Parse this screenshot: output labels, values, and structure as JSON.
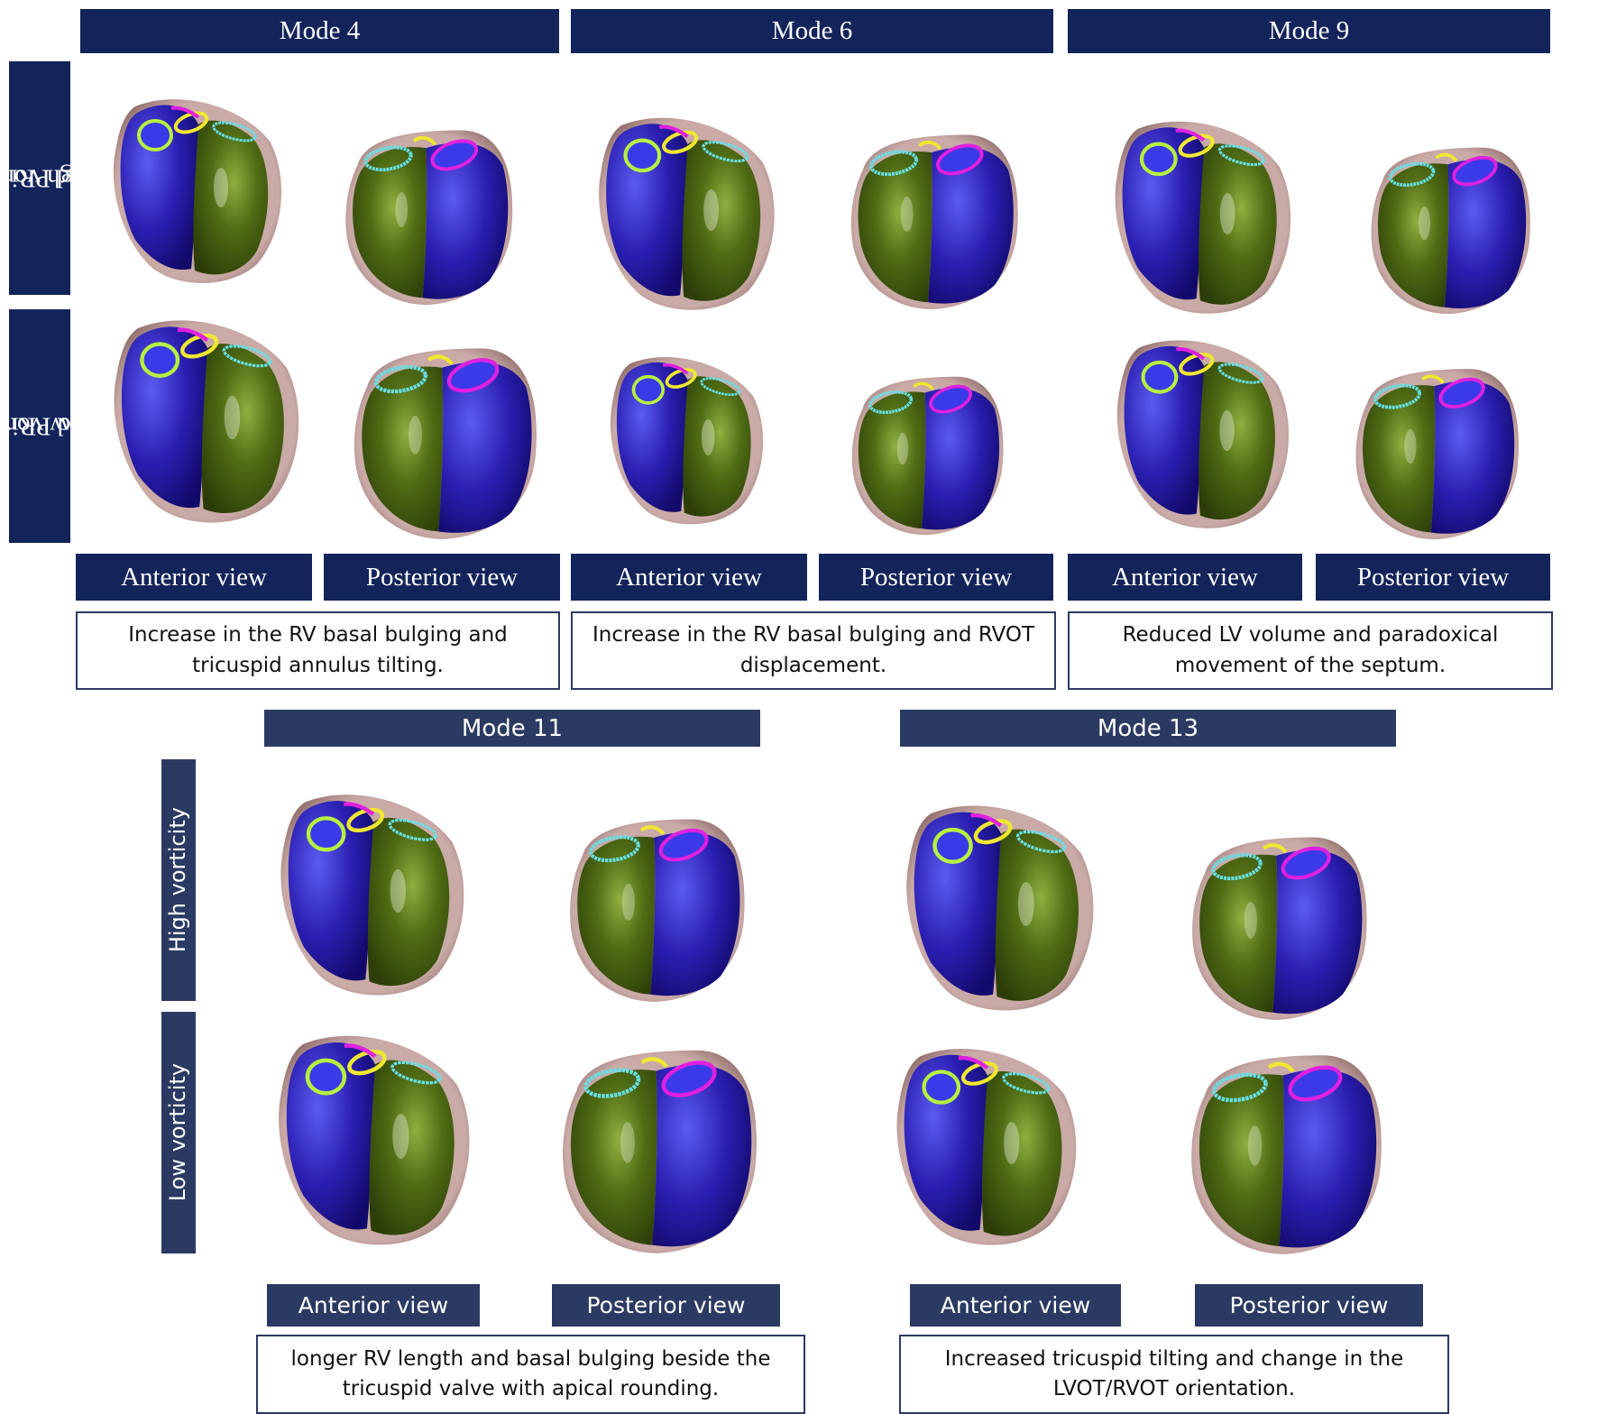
{
  "top_section": {
    "modes": [
      {
        "title": "Mode 4",
        "views": [
          "Anterior view",
          "Posterior view"
        ],
        "description": [
          "Increase in the RV basal bulging and",
          "tricuspid annulus tilting."
        ]
      },
      {
        "title": "Mode 6",
        "views": [
          "Anterior view",
          "Posterior view"
        ],
        "description": [
          "Increase in the RV basal bulging and RVOT",
          "displacement."
        ]
      },
      {
        "title": "Mode 9",
        "views": [
          "Anterior view",
          "Posterior view"
        ],
        "description": [
          "Reduced LV volume and paradoxical",
          "movement of the septum."
        ]
      }
    ],
    "row_labels": [
      [
        "High vorticity",
        "and PRi"
      ],
      [
        "Low vorticity",
        "and PRi"
      ]
    ]
  },
  "bottom_section": {
    "modes": [
      {
        "title": "Mode 11",
        "views": [
          "Anterior view",
          "Posterior view"
        ],
        "description": [
          "longer RV length and basal bulging beside the",
          "tricuspid valve with apical rounding."
        ]
      },
      {
        "title": "Mode 13",
        "views": [
          "Anterior view",
          "Posterior view"
        ],
        "description": [
          "Increased tricuspid tilting and change in the",
          "LVOT/RVOT orientation."
        ]
      }
    ],
    "row_labels": [
      "High vorticity",
      "Low vorticity"
    ]
  },
  "colors": {
    "header_bg": "#13245a",
    "header_bg_bottom": "#2b3a62",
    "lv": "#1f1aa0",
    "rv": "#4b6a12",
    "epicardium": "#b99a97",
    "tricuspid_ring": "#66e0e8",
    "mitral_ring": "#e020e0",
    "pulmonary_ring": "#e8e020",
    "aortic_ring": "#a8e030"
  }
}
